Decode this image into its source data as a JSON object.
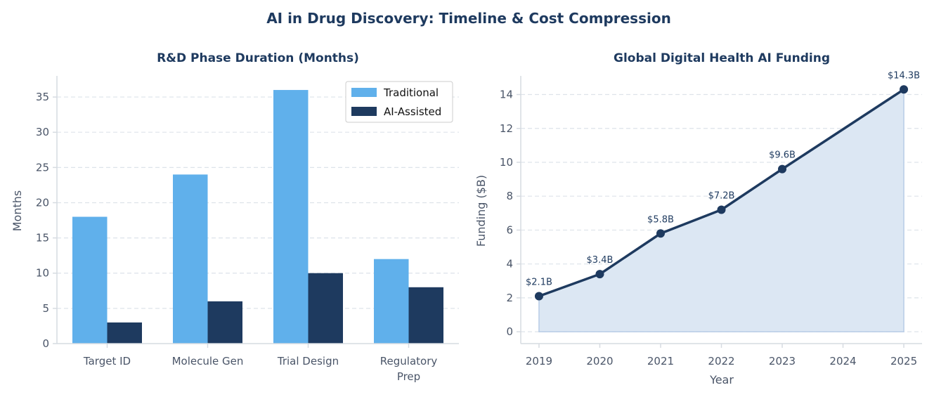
{
  "figure_title": "AI in Drug Discovery: Timeline & Cost Compression",
  "colors": {
    "traditional": "#60b0eb",
    "ai": "#1e3a5f",
    "area": "#dce7f3",
    "area_edge": "#b8cce6",
    "text": "#1e3a5f"
  },
  "chart_data": [
    {
      "type": "bar",
      "title": "R&D Phase Duration (Months)",
      "xlabel": "",
      "ylabel": "Months",
      "ylim": [
        0,
        38
      ],
      "yticks": [
        0,
        5,
        10,
        15,
        20,
        25,
        30,
        35
      ],
      "categories": [
        [
          "Target ID"
        ],
        [
          "Molecule Gen"
        ],
        [
          "Trial Design"
        ],
        [
          "Regulatory",
          "Prep"
        ]
      ],
      "series": [
        {
          "name": "Traditional",
          "values": [
            18,
            24,
            36,
            12
          ]
        },
        {
          "name": "AI-Assisted",
          "values": [
            3,
            6,
            10,
            8
          ]
        }
      ],
      "legend": "top-right",
      "grid": true
    },
    {
      "type": "area",
      "title": "Global Digital Health AI Funding",
      "xlabel": "Year",
      "ylabel": "Funding ($B)",
      "xlim": [
        2018.7,
        2025.3
      ],
      "ylim": [
        -0.7,
        15.1
      ],
      "xticks": [
        2019,
        2020,
        2021,
        2022,
        2023,
        2024,
        2025
      ],
      "yticks": [
        0,
        2,
        4,
        6,
        8,
        10,
        12,
        14
      ],
      "x": [
        2019,
        2020,
        2021,
        2022,
        2023,
        2025
      ],
      "y": [
        2.1,
        3.4,
        5.8,
        7.2,
        9.6,
        14.3
      ],
      "labels": [
        "$2.1B",
        "$3.4B",
        "$5.8B",
        "$7.2B",
        "$9.6B",
        "$14.3B"
      ],
      "grid": true
    }
  ]
}
